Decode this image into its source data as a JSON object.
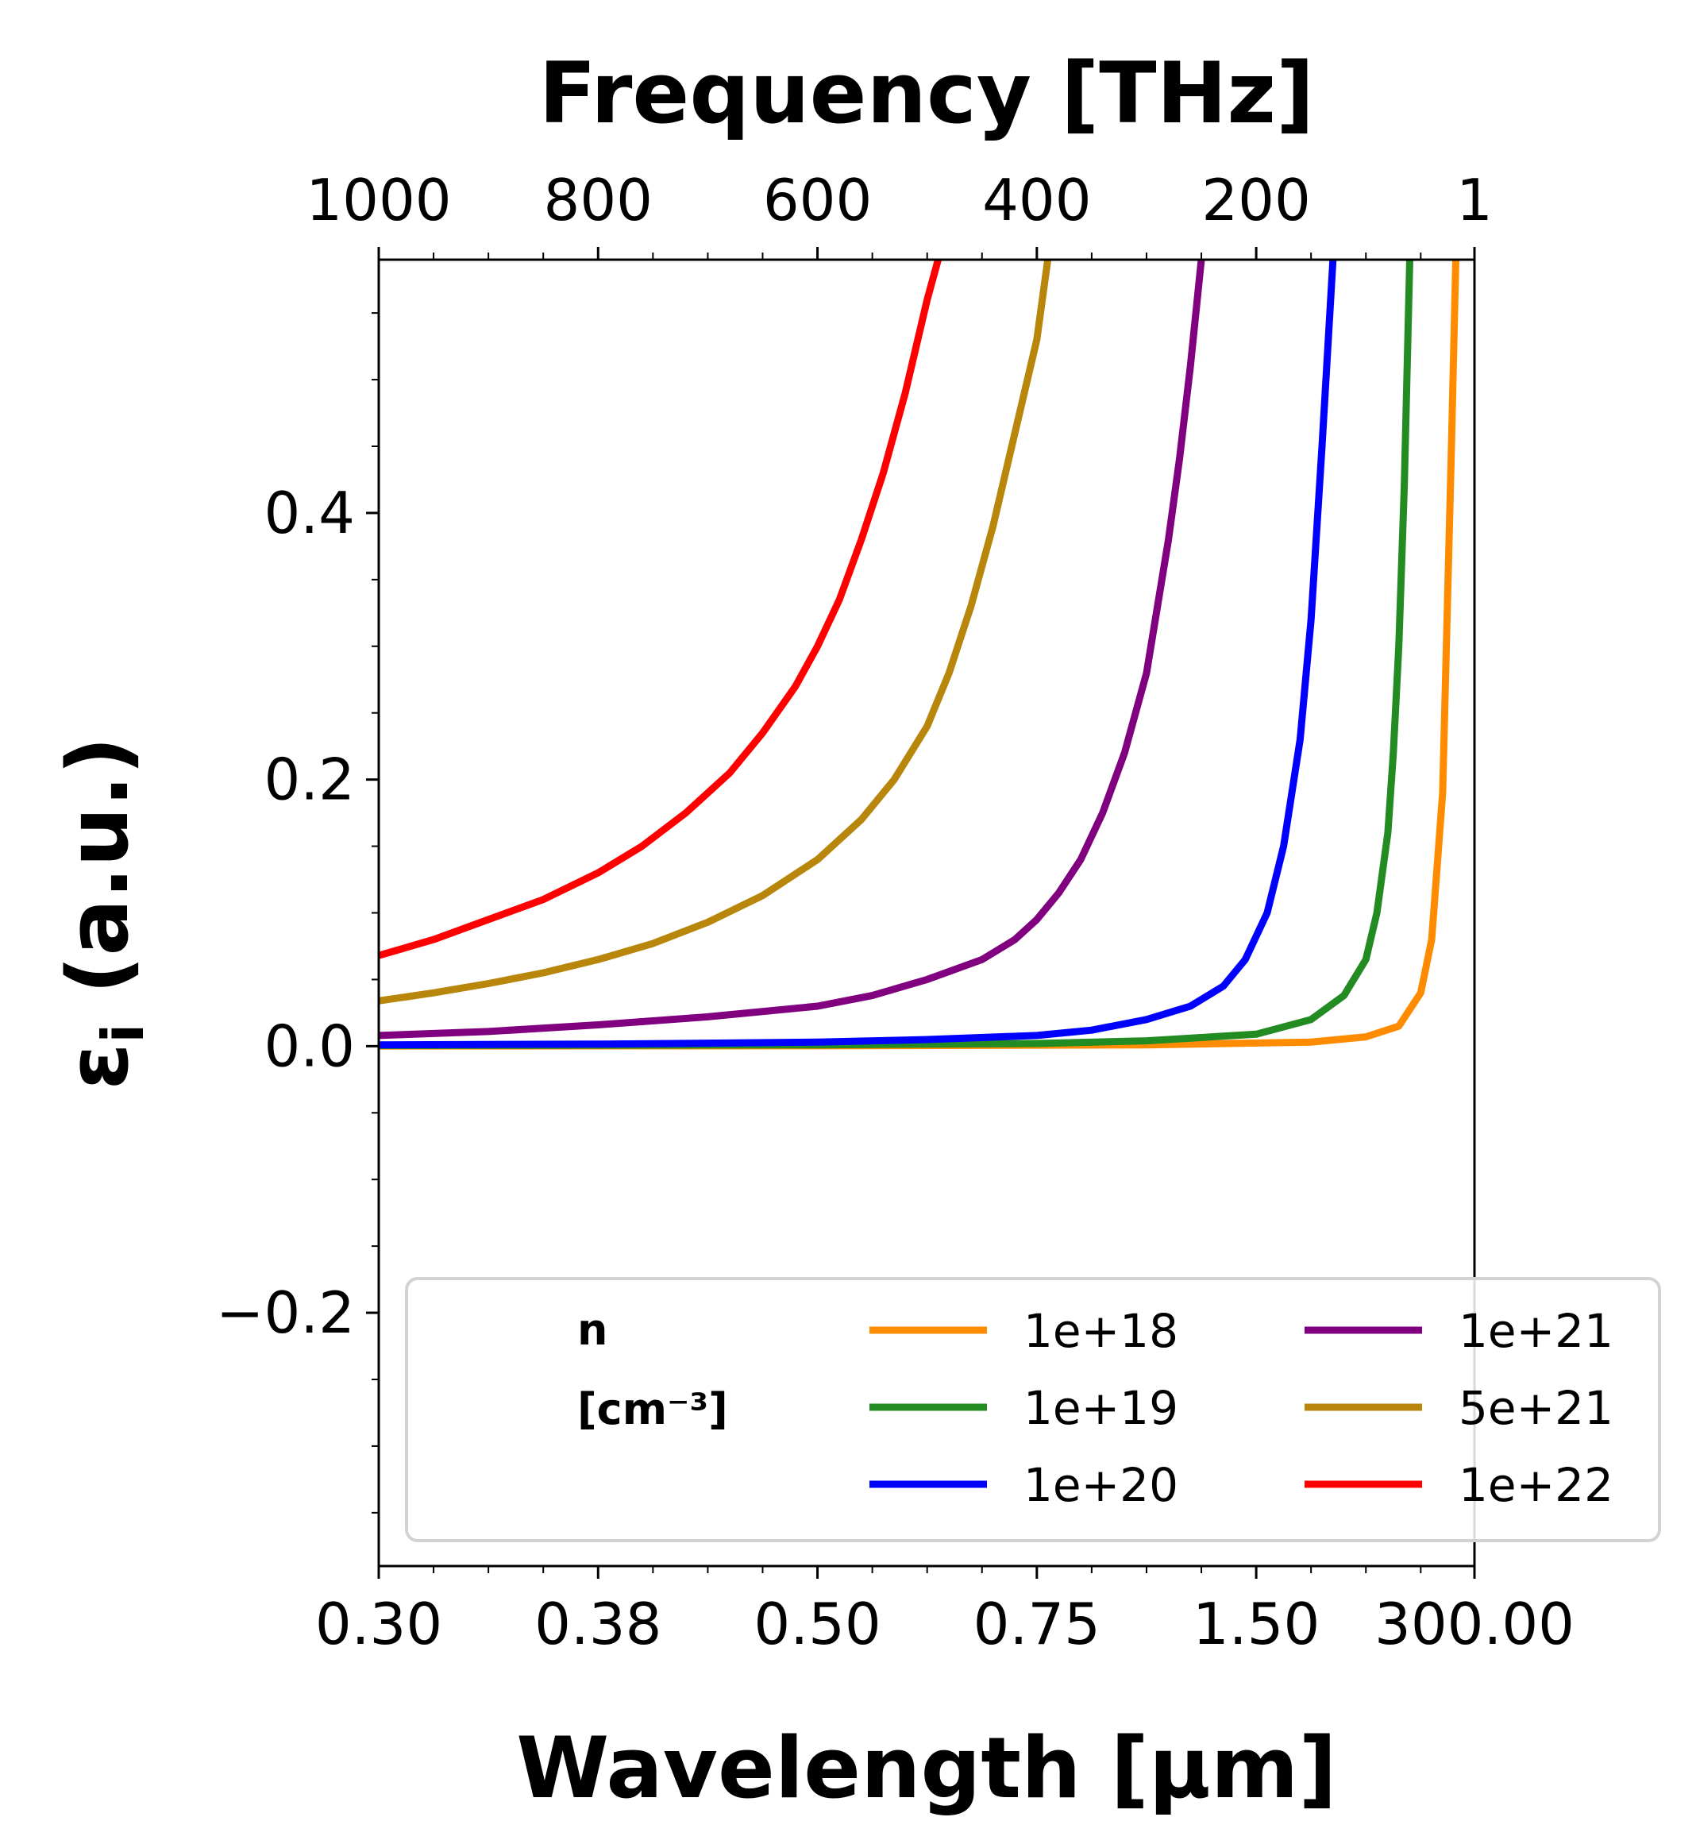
{
  "chart_data": {
    "type": "line",
    "xlabel": "Wavelength [μm]",
    "x2label": "Frequency [THz]",
    "ylabel": "ε",
    "ylabel_subscript": "i",
    "ylabel_suffix": " (a.u.)",
    "x_axis_scale": "reciprocal",
    "x_units": "μm",
    "x2_units": "THz",
    "xlim_frequency_THz": [
      1000,
      1
    ],
    "ylim": [
      -0.39,
      0.59
    ],
    "x_ticks": [
      {
        "freq": 1000,
        "label": "0.30"
      },
      {
        "freq": 800,
        "label": "0.38"
      },
      {
        "freq": 600,
        "label": "0.50"
      },
      {
        "freq": 400,
        "label": "0.75"
      },
      {
        "freq": 200,
        "label": "1.50"
      },
      {
        "freq": 1,
        "label": "300.00"
      }
    ],
    "x2_ticks": [
      {
        "freq": 1000,
        "label": "1000"
      },
      {
        "freq": 800,
        "label": "800"
      },
      {
        "freq": 600,
        "label": "600"
      },
      {
        "freq": 400,
        "label": "400"
      },
      {
        "freq": 200,
        "label": "200"
      },
      {
        "freq": 1,
        "label": "1"
      }
    ],
    "y_ticks": [
      {
        "value": -0.2,
        "label": "−0.2"
      },
      {
        "value": 0.0,
        "label": "0.0"
      },
      {
        "value": 0.2,
        "label": "0.2"
      },
      {
        "value": 0.4,
        "label": "0.4"
      }
    ],
    "grid": false,
    "legend": {
      "placement": "lower-right",
      "columns": 2,
      "title_line1": "n",
      "title_line2": "[cm⁻³]"
    },
    "series": [
      {
        "name": "1e+18",
        "color": "#ff8c00",
        "points": [
          [
            1000,
            0.0001
          ],
          [
            600,
            0.0003
          ],
          [
            300,
            0.001
          ],
          [
            150,
            0.003
          ],
          [
            100,
            0.007
          ],
          [
            70,
            0.015
          ],
          [
            50,
            0.04
          ],
          [
            40,
            0.08
          ],
          [
            30,
            0.19
          ],
          [
            22,
            0.45
          ],
          [
            18,
            0.59
          ]
        ]
      },
      {
        "name": "1e+19",
        "color": "#228b22",
        "points": [
          [
            1000,
            0.0005
          ],
          [
            600,
            0.001
          ],
          [
            400,
            0.002
          ],
          [
            300,
            0.004
          ],
          [
            200,
            0.009
          ],
          [
            150,
            0.02
          ],
          [
            120,
            0.038
          ],
          [
            100,
            0.065
          ],
          [
            90,
            0.1
          ],
          [
            80,
            0.16
          ],
          [
            75,
            0.22
          ],
          [
            70,
            0.3
          ],
          [
            65,
            0.42
          ],
          [
            60,
            0.59
          ]
        ]
      },
      {
        "name": "1e+20",
        "color": "#0000ff",
        "points": [
          [
            1000,
            0.001
          ],
          [
            800,
            0.0015
          ],
          [
            600,
            0.003
          ],
          [
            500,
            0.005
          ],
          [
            400,
            0.008
          ],
          [
            350,
            0.012
          ],
          [
            300,
            0.02
          ],
          [
            260,
            0.03
          ],
          [
            230,
            0.045
          ],
          [
            210,
            0.065
          ],
          [
            190,
            0.1
          ],
          [
            175,
            0.15
          ],
          [
            160,
            0.23
          ],
          [
            150,
            0.32
          ],
          [
            140,
            0.45
          ],
          [
            130,
            0.59
          ]
        ]
      },
      {
        "name": "1e+21",
        "color": "#800080",
        "points": [
          [
            1000,
            0.008
          ],
          [
            900,
            0.011
          ],
          [
            800,
            0.016
          ],
          [
            700,
            0.022
          ],
          [
            600,
            0.03
          ],
          [
            550,
            0.038
          ],
          [
            500,
            0.05
          ],
          [
            450,
            0.065
          ],
          [
            420,
            0.08
          ],
          [
            400,
            0.095
          ],
          [
            380,
            0.115
          ],
          [
            360,
            0.14
          ],
          [
            340,
            0.175
          ],
          [
            320,
            0.22
          ],
          [
            300,
            0.28
          ],
          [
            290,
            0.33
          ],
          [
            280,
            0.38
          ],
          [
            270,
            0.44
          ],
          [
            260,
            0.51
          ],
          [
            250,
            0.59
          ]
        ]
      },
      {
        "name": "5e+21",
        "color": "#b8860b",
        "points": [
          [
            1000,
            0.034
          ],
          [
            950,
            0.04
          ],
          [
            900,
            0.047
          ],
          [
            850,
            0.055
          ],
          [
            800,
            0.065
          ],
          [
            750,
            0.077
          ],
          [
            700,
            0.093
          ],
          [
            650,
            0.113
          ],
          [
            600,
            0.14
          ],
          [
            560,
            0.17
          ],
          [
            530,
            0.2
          ],
          [
            500,
            0.24
          ],
          [
            480,
            0.28
          ],
          [
            460,
            0.33
          ],
          [
            440,
            0.39
          ],
          [
            420,
            0.46
          ],
          [
            400,
            0.53
          ],
          [
            390,
            0.59
          ]
        ]
      },
      {
        "name": "1e+22",
        "color": "#ff0000",
        "points": [
          [
            1000,
            0.068
          ],
          [
            950,
            0.08
          ],
          [
            900,
            0.095
          ],
          [
            850,
            0.11
          ],
          [
            800,
            0.13
          ],
          [
            760,
            0.15
          ],
          [
            720,
            0.175
          ],
          [
            680,
            0.205
          ],
          [
            650,
            0.235
          ],
          [
            620,
            0.27
          ],
          [
            600,
            0.3
          ],
          [
            580,
            0.335
          ],
          [
            560,
            0.38
          ],
          [
            540,
            0.43
          ],
          [
            520,
            0.49
          ],
          [
            500,
            0.56
          ],
          [
            490,
            0.59
          ]
        ]
      }
    ]
  }
}
